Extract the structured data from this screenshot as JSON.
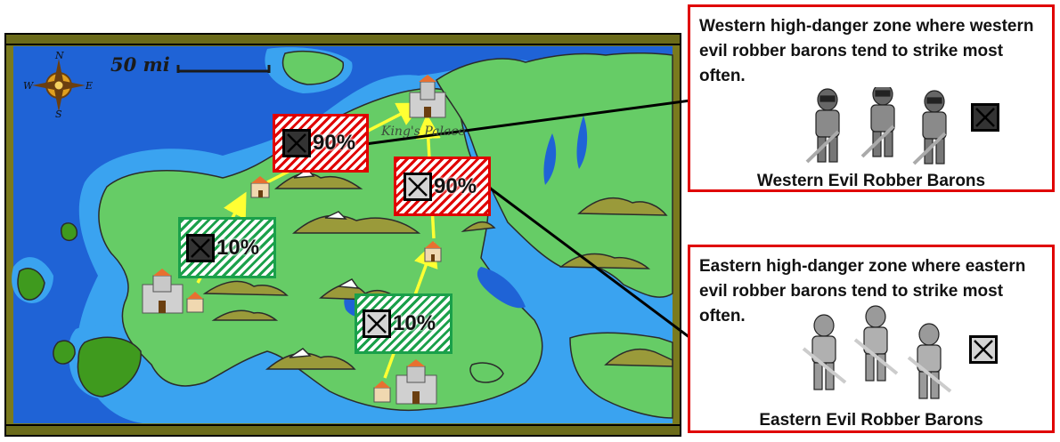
{
  "map": {
    "scale_label": "50 mi",
    "palace_label": "King's Palace",
    "compass": {
      "n": "N",
      "s": "S",
      "e": "E",
      "w": "W"
    }
  },
  "zones": [
    {
      "id": "west-high",
      "percent": "90%",
      "style": "red",
      "baron": "western"
    },
    {
      "id": "east-high",
      "percent": "90%",
      "style": "red",
      "baron": "eastern"
    },
    {
      "id": "west-low",
      "percent": "10%",
      "style": "green",
      "baron": "western"
    },
    {
      "id": "east-low",
      "percent": "10%",
      "style": "green",
      "baron": "eastern"
    }
  ],
  "legend": {
    "western": {
      "description": "Western high-danger zone where western evil robber barons tend to strike most often.",
      "label": "Western Evil Robber Barons"
    },
    "eastern": {
      "description": "Eastern high-danger zone where eastern evil robber barons tend to strike most often.",
      "label": "Eastern Evil Robber Barons"
    }
  },
  "colors": {
    "ocean_deep": "#1f63d6",
    "ocean_shallow": "#3aa3f0",
    "land": "#66cc66",
    "frame": "#6b6b1a",
    "route": "#ffff33",
    "high_danger": "#e00000",
    "low_danger": "#1aa04a",
    "western_baron_box": "#333333",
    "eastern_baron_box": "#d4d4d4"
  }
}
